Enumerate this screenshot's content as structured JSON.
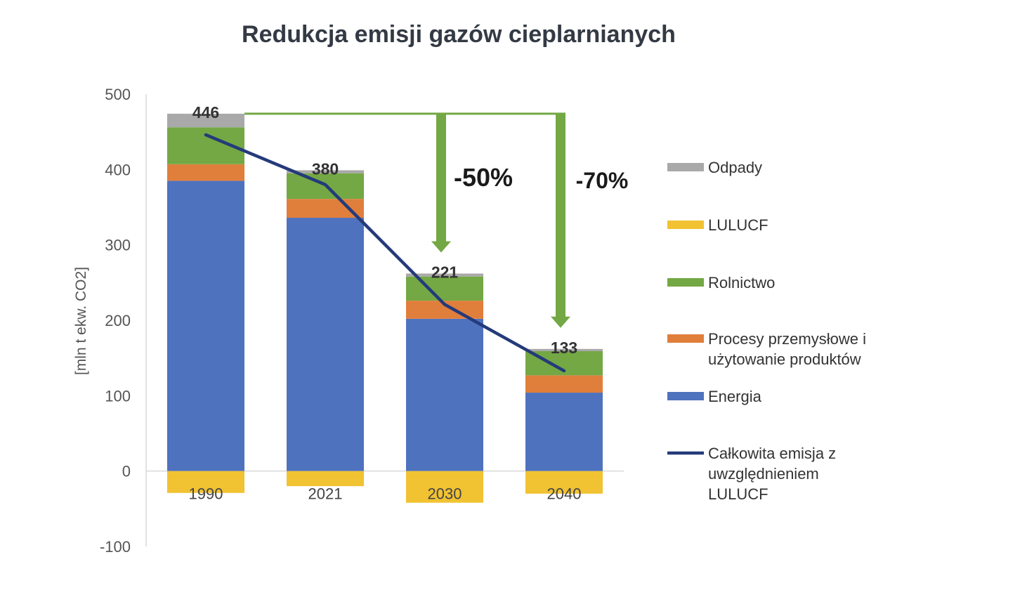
{
  "chart_data": {
    "type": "bar",
    "stacked": true,
    "title": "Redukcja emisji gazów cieplarnianych",
    "ylabel": "[mln t ekw. CO2]",
    "xlabel": "",
    "ylim": [
      -100,
      500
    ],
    "yticks": [
      "500",
      "400",
      "300",
      "200",
      "100",
      "0",
      "-100"
    ],
    "ytick_values": [
      500,
      400,
      300,
      200,
      100,
      0,
      -100
    ],
    "categories": [
      "1990",
      "2021",
      "2030",
      "2040"
    ],
    "series": [
      {
        "name": "Energia",
        "color": "#4f72be",
        "values": [
          385,
          336,
          202,
          104
        ]
      },
      {
        "name": "Procesy przemysłowe i użytowanie produktów",
        "color": "#e07e3c",
        "values": [
          22,
          25,
          24,
          23
        ]
      },
      {
        "name": "Rolnictwo",
        "color": "#73a844",
        "values": [
          49,
          34,
          32,
          32
        ]
      },
      {
        "name": "Odpady",
        "color": "#a9a9a9",
        "values": [
          18,
          4,
          4,
          3
        ]
      },
      {
        "name": "LULUCF",
        "color": "#f1c232",
        "values": [
          -29,
          -20,
          -42,
          -30
        ]
      }
    ],
    "line_series": {
      "name": "Całkowita emisja z uwzględnieniem LULUCF",
      "color": "#243a7a",
      "values": [
        446,
        380,
        221,
        133
      ]
    },
    "data_labels": [
      "446",
      "380",
      "221",
      "133"
    ],
    "annotations": [
      {
        "text": "-50%",
        "from_category": "1990",
        "to_category": "2030",
        "color": "#73a844"
      },
      {
        "text": "-70%",
        "from_category": "1990",
        "to_category": "2040",
        "color": "#73a844"
      }
    ],
    "legend": {
      "position": "right",
      "items": [
        {
          "series": "Odpady",
          "lines": [
            "Odpady"
          ],
          "kind": "bar",
          "color": "#a9a9a9"
        },
        {
          "series": "LULUCF",
          "lines": [
            "LULUCF"
          ],
          "kind": "bar",
          "color": "#f1c232"
        },
        {
          "series": "Rolnictwo",
          "lines": [
            "Rolnictwo"
          ],
          "kind": "bar",
          "color": "#73a844"
        },
        {
          "series": "Procesy przemysłowe i użytowanie produktów",
          "lines": [
            "Procesy przemysłowe i",
            "użytowanie produktów"
          ],
          "kind": "bar",
          "color": "#e07e3c"
        },
        {
          "series": "Energia",
          "lines": [
            "Energia"
          ],
          "kind": "bar",
          "color": "#4f72be"
        },
        {
          "series": "Całkowita emisja z uwzględnieniem LULUCF",
          "lines": [
            "Całkowita emisja z",
            "uwzględnieniem",
            "LULUCF"
          ],
          "kind": "line",
          "color": "#243a7a"
        }
      ]
    },
    "grid": false
  }
}
